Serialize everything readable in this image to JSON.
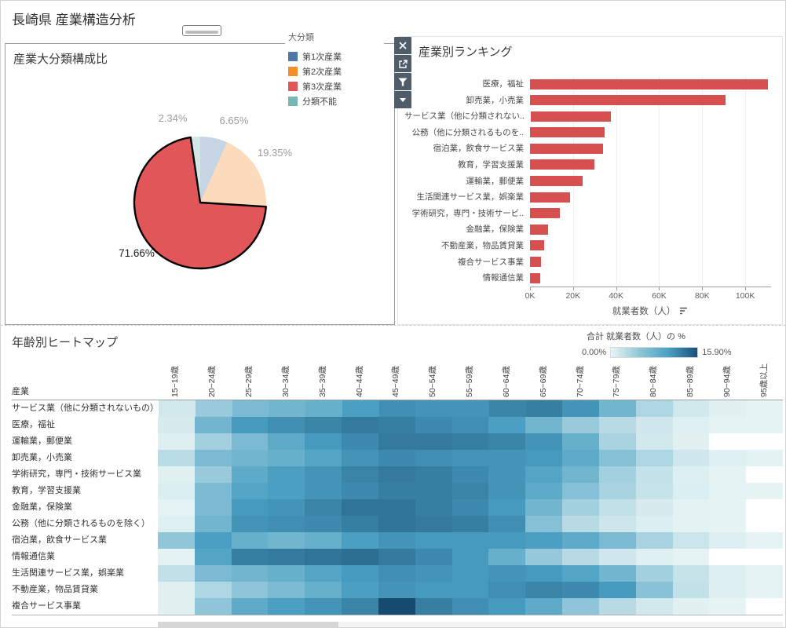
{
  "page": {
    "title": "長崎県 産業構造分析"
  },
  "legend": {
    "title": "大分類",
    "items": [
      {
        "label": "第1次産業",
        "color": "#4e79a7"
      },
      {
        "label": "第2次産業",
        "color": "#f28e2b"
      },
      {
        "label": "第3次産業",
        "color": "#e15759"
      },
      {
        "label": "分類不能",
        "color": "#76b7b2"
      }
    ]
  },
  "toolbar": {
    "icons": [
      "close-icon",
      "open-external-icon",
      "filter-icon",
      "caret-down-icon"
    ]
  },
  "chart_data": [
    {
      "type": "pie",
      "title": "産業大分類構成比",
      "labels": [
        "第1次産業",
        "第2次産業",
        "第3次産業",
        "分類不能"
      ],
      "values": [
        6.65,
        19.35,
        71.66,
        2.34
      ],
      "display_labels": [
        "6.65%",
        "19.35%",
        "71.66%",
        "2.34%"
      ],
      "colors": [
        "#4e79a7",
        "#f28e2b",
        "#e15759",
        "#76b7b2"
      ],
      "highlighted": "第3次産業"
    },
    {
      "type": "bar",
      "title": "産業別ランキング",
      "orientation": "horizontal",
      "categories": [
        "医療，福祉",
        "卸売業，小売業",
        "サービス業（他に分類されない..",
        "公務（他に分類されるものを..",
        "宿泊業，飲食サービス業",
        "教育，学習支援業",
        "運輸業，郵便業",
        "生活関連サービス業，娯楽業",
        "学術研究，専門・技術サービ..",
        "金融業，保険業",
        "不動産業，物品賃貸業",
        "複合サービス事業",
        "情報通信業"
      ],
      "values": [
        110500,
        91000,
        37500,
        34500,
        34000,
        30000,
        24500,
        18500,
        14000,
        8500,
        6500,
        5200,
        4800
      ],
      "xlabel": "就業者数（人）",
      "x_ticks": [
        "0K",
        "20K",
        "40K",
        "60K",
        "80K",
        "100K"
      ],
      "x_tick_values": [
        0,
        20000,
        40000,
        60000,
        80000,
        100000
      ],
      "xlim": [
        0,
        112000
      ],
      "bar_color": "#d6504f",
      "grid": true,
      "legend_position": "none"
    },
    {
      "type": "heatmap",
      "title": "年齢別ヒートマップ",
      "row_header": "産業",
      "columns": [
        "15~19歳",
        "20~24歳",
        "25~29歳",
        "30~34歳",
        "35~39歳",
        "40~44歳",
        "45~49歳",
        "50~54歳",
        "55~59歳",
        "60~64歳",
        "65~69歳",
        "70~74歳",
        "75~79歳",
        "80~84歳",
        "85~89歳",
        "90~94歳",
        "95歳以上"
      ],
      "rows": [
        "サービス業（他に分類されないもの）",
        "医療，福祉",
        "運輸業，郵便業",
        "卸売業，小売業",
        "学術研究，専門・技術サービス業",
        "教育，学習支援業",
        "金融業，保険業",
        "公務（他に分類されるものを除く）",
        "宿泊業，飲食サービス業",
        "情報通信業",
        "生活関連サービス業，娯楽業",
        "不動産業，物品賃貸業",
        "複合サービス事業"
      ],
      "values": [
        [
          1.2,
          4.0,
          5.5,
          6.0,
          6.5,
          8.0,
          9.5,
          9.0,
          9.0,
          10.5,
          11.0,
          9.0,
          6.0,
          3.0,
          1.2,
          0.4,
          0.1
        ],
        [
          0.9,
          6.0,
          8.5,
          9.5,
          10.5,
          11.5,
          11.0,
          10.0,
          9.5,
          8.0,
          6.0,
          4.0,
          2.5,
          1.3,
          0.5,
          0.2,
          0.1
        ],
        [
          0.6,
          3.5,
          5.5,
          7.0,
          8.5,
          10.0,
          11.5,
          11.5,
          11.0,
          10.5,
          9.0,
          6.5,
          3.2,
          1.2,
          0.4,
          null,
          null
        ],
        [
          2.4,
          5.5,
          6.0,
          6.5,
          7.5,
          9.0,
          10.0,
          9.5,
          9.0,
          9.0,
          8.5,
          7.0,
          5.0,
          3.0,
          1.3,
          0.5,
          0.3
        ],
        [
          0.4,
          4.0,
          7.0,
          8.0,
          9.0,
          10.5,
          11.5,
          11.0,
          10.0,
          9.0,
          7.5,
          6.0,
          3.5,
          1.8,
          0.6,
          0.2,
          null
        ],
        [
          0.7,
          5.5,
          7.5,
          8.0,
          9.0,
          10.0,
          11.0,
          11.0,
          10.5,
          9.0,
          7.0,
          5.0,
          3.2,
          1.7,
          0.7,
          0.2,
          0.1
        ],
        [
          0.2,
          5.5,
          8.5,
          9.0,
          10.5,
          12.0,
          12.0,
          11.0,
          10.0,
          8.5,
          6.0,
          3.5,
          2.0,
          0.9,
          0.3,
          0.1,
          null
        ],
        [
          0.5,
          6.0,
          9.0,
          9.5,
          10.0,
          11.0,
          12.0,
          11.5,
          11.0,
          9.5,
          5.0,
          2.5,
          1.4,
          0.7,
          0.3,
          0.1,
          null
        ],
        [
          4.4,
          8.0,
          6.5,
          6.0,
          6.5,
          8.0,
          9.0,
          8.5,
          8.5,
          8.5,
          8.0,
          7.0,
          5.5,
          3.2,
          1.6,
          0.6,
          0.2
        ],
        [
          0.3,
          7.5,
          11.0,
          11.5,
          12.0,
          12.5,
          11.5,
          10.0,
          8.5,
          6.5,
          4.2,
          2.5,
          1.3,
          0.5,
          0.2,
          null,
          null
        ],
        [
          2.0,
          5.5,
          6.0,
          6.5,
          7.5,
          8.5,
          9.5,
          9.0,
          8.5,
          9.0,
          8.5,
          7.5,
          6.0,
          3.5,
          1.7,
          0.6,
          0.2
        ],
        [
          0.4,
          3.0,
          4.5,
          5.5,
          6.5,
          8.0,
          9.0,
          8.5,
          8.5,
          9.5,
          10.5,
          10.0,
          8.5,
          4.8,
          2.0,
          0.6,
          0.2
        ],
        [
          0.4,
          4.5,
          7.0,
          8.0,
          9.0,
          10.5,
          15.9,
          11.0,
          9.5,
          8.5,
          7.0,
          4.5,
          2.5,
          1.2,
          0.4,
          0.1,
          null
        ]
      ],
      "color_scale": {
        "min": 0,
        "max": 15.9,
        "min_label": "0.00%",
        "max_label": "15.90%",
        "legend_title": "合計 就業者数（人）の %",
        "colors": [
          "#e9f5f5",
          "#8ec7d4",
          "#4aa0c3",
          "#1a5078"
        ]
      }
    }
  ]
}
